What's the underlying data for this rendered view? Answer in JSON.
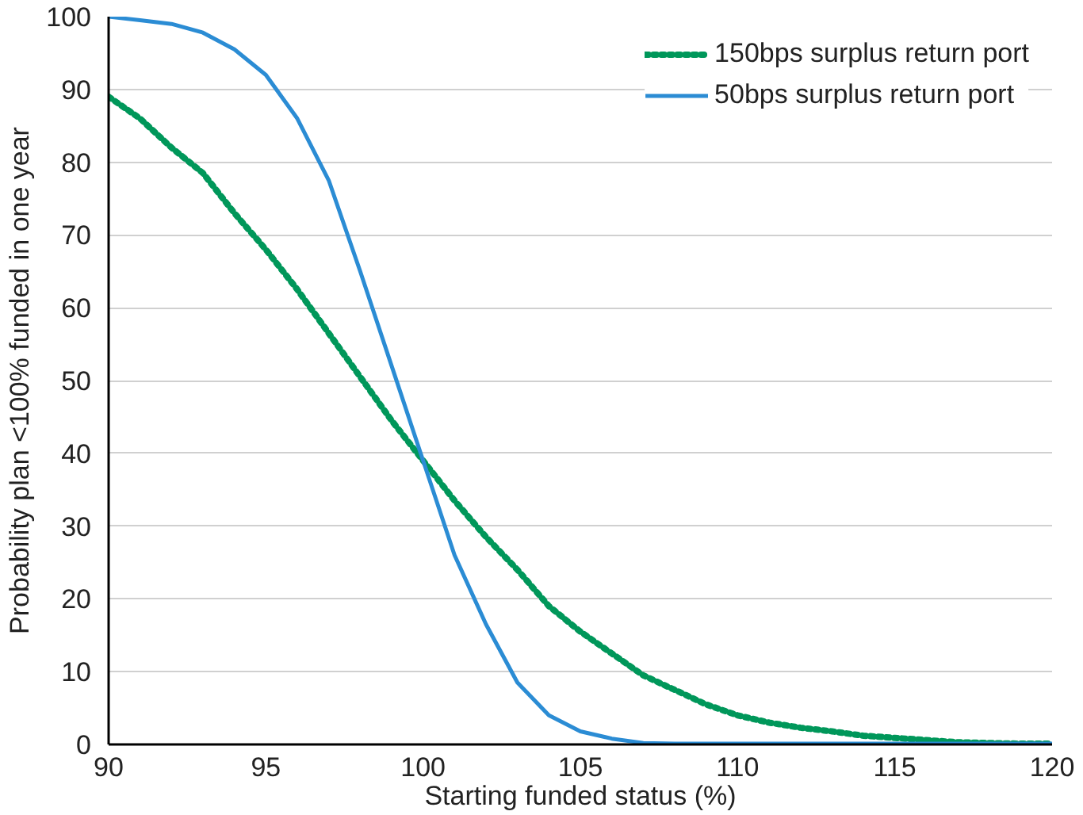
{
  "chart_data": {
    "type": "line",
    "xlabel": "Starting funded status (%)",
    "ylabel": "Probability plan <100% funded in one year",
    "x": [
      90,
      91,
      92,
      93,
      94,
      95,
      96,
      97,
      98,
      99,
      100,
      101,
      102,
      103,
      104,
      105,
      106,
      107,
      108,
      109,
      110,
      111,
      112,
      113,
      114,
      115,
      116,
      117,
      118,
      119,
      120
    ],
    "series": [
      {
        "name": "150bps surplus return port",
        "color": "#00975a",
        "line_style": "dotted",
        "values": [
          89,
          86,
          82,
          78.5,
          73,
          68,
          62.5,
          56.5,
          50.5,
          44.5,
          39,
          33.5,
          28.5,
          24,
          19,
          15.5,
          12.5,
          9.5,
          7.5,
          5.5,
          4,
          3,
          2.3,
          1.8,
          1.2,
          0.9,
          0.6,
          0.3,
          0.2,
          0.1,
          0.1
        ]
      },
      {
        "name": "50bps surplus return port",
        "color": "#2b8cd4",
        "line_style": "solid",
        "values": [
          100,
          99.5,
          99,
          97.8,
          95.5,
          92,
          86,
          77.5,
          65,
          52,
          39,
          26,
          16.5,
          8.5,
          4,
          1.8,
          0.8,
          0.2,
          0.1,
          0.1,
          0.1,
          0.1,
          0.1,
          0.1,
          0.1,
          0.1,
          0.1,
          0.1,
          0.1,
          0.1,
          0.1
        ]
      }
    ],
    "xlim": [
      90,
      120
    ],
    "xticks": [
      90,
      95,
      100,
      105,
      110,
      115,
      120
    ],
    "ylim": [
      0,
      100
    ],
    "yticks": [
      0,
      10,
      20,
      30,
      40,
      50,
      60,
      70,
      80,
      90,
      100
    ],
    "grid": "y",
    "legend": "top right"
  }
}
